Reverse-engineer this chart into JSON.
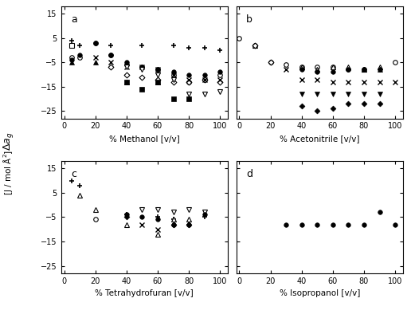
{
  "panels": [
    "a",
    "b",
    "c",
    "d"
  ],
  "xlabels": [
    "% Methanol [v/v]",
    "% Acetonitrile [v/v]",
    "% Tetrahydrofuran [v/v]",
    "% Isopropanol [v/v]"
  ],
  "ylim": [
    -28,
    18
  ],
  "yticks": [
    -25,
    -15,
    -5,
    5,
    15
  ],
  "xlim": [
    -2,
    105
  ],
  "xticks": [
    0,
    20,
    40,
    60,
    80,
    100
  ],
  "series_a": {
    "plus": {
      "x": [
        5,
        10,
        30,
        50,
        70,
        80,
        90,
        100
      ],
      "y": [
        4,
        2,
        2,
        2,
        2,
        1,
        1,
        0
      ]
    },
    "open_square": {
      "x": [
        5
      ],
      "y": [
        2
      ]
    },
    "open_circle": {
      "x": [
        5,
        10,
        20,
        30,
        40,
        50,
        60,
        70,
        80,
        90,
        100
      ],
      "y": [
        -3,
        -3,
        3,
        -2,
        -6,
        -7,
        -8,
        -10,
        -13,
        -12,
        -10
      ]
    },
    "filled_circle": {
      "x": [
        5,
        10,
        20,
        30,
        40,
        50,
        60,
        70,
        80,
        90,
        100
      ],
      "y": [
        -4,
        -2,
        3,
        -2,
        -5,
        -7,
        -8,
        -9,
        -10,
        -10,
        -9
      ]
    },
    "filled_triangle_up": {
      "x": [
        5,
        20,
        40,
        60
      ],
      "y": [
        -5,
        -5,
        -13,
        -13
      ]
    },
    "open_diamond": {
      "x": [
        30,
        40,
        50,
        60,
        70,
        80,
        90,
        100
      ],
      "y": [
        -7,
        -10,
        -11,
        -12,
        -13,
        -13,
        -12,
        -13
      ]
    },
    "cross": {
      "x": [
        20,
        30,
        40,
        50,
        60,
        70,
        80,
        90,
        100
      ],
      "y": [
        -3,
        -5,
        -7,
        -7,
        -8,
        -10,
        -12,
        -12,
        -12
      ]
    },
    "filled_square": {
      "x": [
        40,
        50,
        60,
        70,
        80
      ],
      "y": [
        -13,
        -16,
        -13,
        -20,
        -20
      ]
    },
    "open_nabla": {
      "x": [
        40,
        50,
        60,
        70,
        80,
        90,
        100
      ],
      "y": [
        -7,
        -8,
        -10,
        -12,
        -18,
        -18,
        -17
      ]
    }
  },
  "series_b": {
    "open_circle": {
      "x": [
        0,
        10,
        20,
        30,
        40,
        50,
        60,
        70,
        80,
        100
      ],
      "y": [
        5,
        2,
        -5,
        -6,
        -7,
        -7,
        -7,
        -8,
        -8,
        -5
      ]
    },
    "open_triangle_up": {
      "x": [
        10,
        40,
        50,
        60,
        70,
        80,
        90
      ],
      "y": [
        2,
        -7,
        -8,
        -7,
        -7,
        -8,
        -7
      ]
    },
    "open_diamond": {
      "x": [
        10,
        20
      ],
      "y": [
        2,
        -5
      ]
    },
    "cross": {
      "x": [
        30,
        40,
        50,
        60,
        70,
        80,
        90,
        100
      ],
      "y": [
        -8,
        -12,
        -12,
        -13,
        -13,
        -13,
        -13,
        -13
      ]
    },
    "filled_circle": {
      "x": [
        40,
        50,
        60,
        70,
        80,
        90
      ],
      "y": [
        -8,
        -9,
        -9,
        -8,
        -8,
        -8
      ]
    },
    "filled_triangle_down": {
      "x": [
        40,
        50,
        60,
        70,
        80,
        90
      ],
      "y": [
        -18,
        -18,
        -18,
        -18,
        -18,
        -18
      ]
    },
    "filled_diamond": {
      "x": [
        40,
        50,
        60,
        70,
        80,
        90
      ],
      "y": [
        -23,
        -25,
        -24,
        -22,
        -22,
        -22
      ]
    },
    "filled_triangle_up": {
      "x": [
        80,
        90
      ],
      "y": [
        -8,
        -8
      ]
    }
  },
  "series_c": {
    "plus": {
      "x": [
        5,
        10,
        40,
        60,
        70,
        80,
        90
      ],
      "y": [
        10,
        8,
        -4,
        -5,
        -6,
        -8,
        -5
      ]
    },
    "open_triangle_up": {
      "x": [
        10,
        20,
        40,
        60,
        70,
        80
      ],
      "y": [
        4,
        -2,
        -8,
        -12,
        -6,
        -6
      ]
    },
    "open_nabla": {
      "x": [
        50,
        60,
        70,
        80,
        90
      ],
      "y": [
        -2,
        -2,
        -3,
        -2,
        -3
      ]
    },
    "filled_circle": {
      "x": [
        40,
        50,
        60,
        70,
        80,
        90
      ],
      "y": [
        -4,
        -5,
        -6,
        -8,
        -8,
        -4
      ]
    },
    "open_circle": {
      "x": [
        20
      ],
      "y": [
        -6
      ]
    },
    "cross": {
      "x": [
        50,
        60
      ],
      "y": [
        -8,
        -10
      ]
    },
    "filled_diamond": {
      "x": [
        40,
        70,
        80
      ],
      "y": [
        -5,
        -8,
        -8
      ]
    }
  },
  "series_d": {
    "filled_circle": {
      "x": [
        30,
        40,
        50,
        60,
        70,
        80,
        90,
        100
      ],
      "y": [
        -8,
        -8,
        -8,
        -8,
        -8,
        -8,
        -3,
        -8
      ]
    }
  }
}
